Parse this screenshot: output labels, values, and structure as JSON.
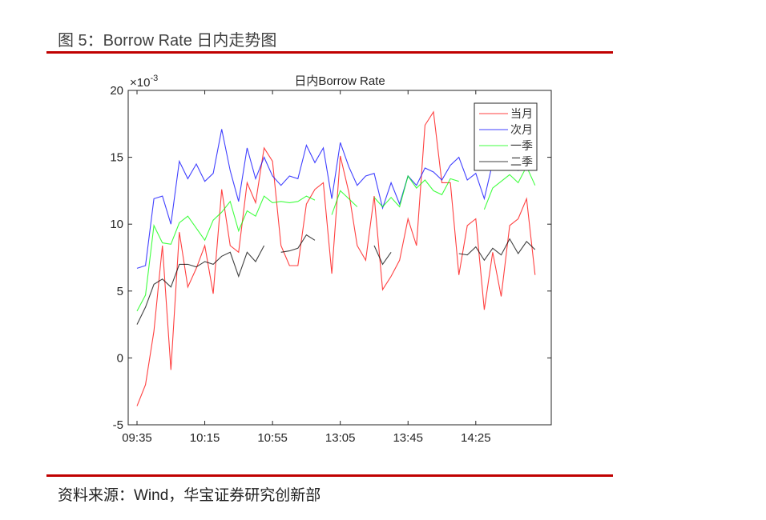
{
  "header": {
    "figure_title": "图 5：Borrow Rate 日内走势图"
  },
  "footer": {
    "source": "资料来源：Wind，华宝证券研究创新部"
  },
  "colors": {
    "rule": "#c00000",
    "series_当月": "#ff0000",
    "series_次月": "#0000ff",
    "series_一季": "#00ff00",
    "series_二季": "#000000"
  },
  "chart_data": {
    "type": "line",
    "title": "日内Borrow Rate",
    "xlabel": "",
    "ylabel": "",
    "y_multiplier_label": "×10-3",
    "ylim": [
      -5,
      20
    ],
    "yticks": [
      -5,
      0,
      5,
      10,
      15,
      20
    ],
    "xtick_labels": [
      "09:35",
      "10:15",
      "10:55",
      "13:05",
      "13:45",
      "14:25"
    ],
    "xtick_indices": [
      0,
      8,
      16,
      24,
      32,
      40
    ],
    "grid": false,
    "legend_position": "top-right inside",
    "n_points": 48,
    "series": [
      {
        "name": "当月",
        "color": "#ff0000",
        "values": [
          -3.6,
          -2.0,
          2.0,
          8.4,
          -0.9,
          9.4,
          5.3,
          6.7,
          8.4,
          4.8,
          12.6,
          8.4,
          7.9,
          13.1,
          11.6,
          15.7,
          14.7,
          8.4,
          6.9,
          6.9,
          11.5,
          12.6,
          13.1,
          6.3,
          15.1,
          12.4,
          8.4,
          7.3,
          12.1,
          5.1,
          6.1,
          7.3,
          10.4,
          8.4,
          17.4,
          18.4,
          13.1,
          13.1,
          6.2,
          9.9,
          10.4,
          3.6,
          7.9,
          4.6,
          9.9,
          10.4,
          11.9,
          6.2
        ]
      },
      {
        "name": "次月",
        "color": "#0000ff",
        "values": [
          6.7,
          6.9,
          11.9,
          12.1,
          10.0,
          14.7,
          13.4,
          14.5,
          13.2,
          13.8,
          17.1,
          14.0,
          11.7,
          15.7,
          13.4,
          15.0,
          13.6,
          12.9,
          13.6,
          13.4,
          15.9,
          14.6,
          15.7,
          11.9,
          16.1,
          14.3,
          12.9,
          13.6,
          13.8,
          11.2,
          13.1,
          11.5,
          13.6,
          12.9,
          14.2,
          13.9,
          13.3,
          14.4,
          15.0,
          13.3,
          13.8,
          11.9,
          14.6,
          15.2,
          14.7,
          14.0,
          14.8,
          14.2
        ]
      },
      {
        "name": "一季",
        "color": "#00ff00",
        "values": [
          3.5,
          4.7,
          9.9,
          8.6,
          8.5,
          10.1,
          10.6,
          9.7,
          8.8,
          10.3,
          10.9,
          11.7,
          9.5,
          11.0,
          10.6,
          12.1,
          11.6,
          11.7,
          11.6,
          11.7,
          12.1,
          11.8,
          null,
          10.7,
          12.5,
          11.9,
          11.3,
          null,
          12.0,
          11.3,
          12.0,
          11.3,
          13.6,
          12.7,
          13.3,
          12.5,
          12.2,
          13.4,
          13.2,
          null,
          null,
          11.1,
          12.7,
          13.2,
          13.7,
          13.1,
          14.3,
          12.9
        ]
      },
      {
        "name": "二季",
        "color": "#000000",
        "values": [
          2.5,
          3.8,
          5.5,
          5.9,
          5.3,
          7.0,
          7.0,
          6.8,
          7.2,
          7.0,
          7.6,
          7.9,
          6.1,
          7.9,
          7.2,
          8.4,
          null,
          7.9,
          8.0,
          8.2,
          9.2,
          8.8,
          null,
          null,
          null,
          null,
          null,
          null,
          8.4,
          7.0,
          7.9,
          null,
          null,
          null,
          null,
          null,
          null,
          null,
          7.8,
          7.7,
          8.3,
          7.3,
          8.2,
          7.7,
          8.9,
          7.8,
          8.7,
          8.1
        ]
      }
    ]
  }
}
